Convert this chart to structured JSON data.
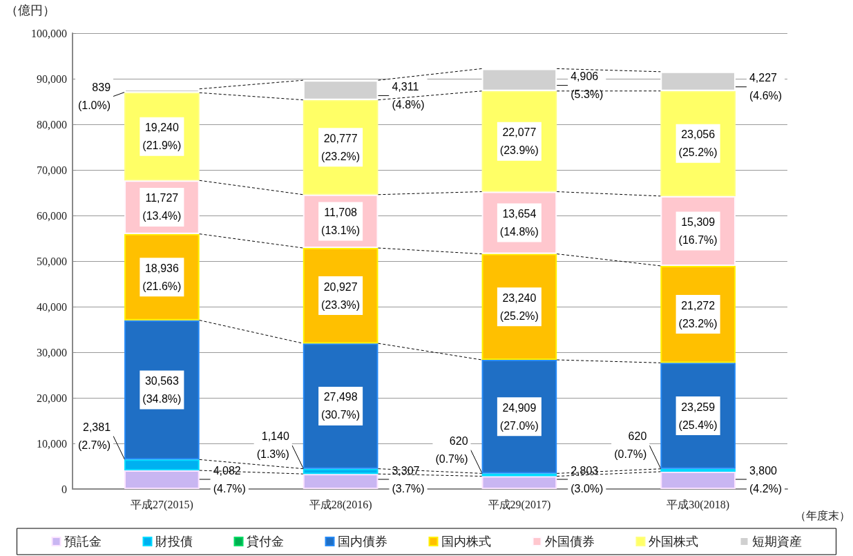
{
  "chart_data": {
    "type": "bar",
    "stacked": true,
    "ylabel": "（億円）",
    "xlabel": "（年度末）",
    "categories": [
      "平成27(2015)",
      "平成28(2016)",
      "平成29(2017)",
      "平成30(2018)"
    ],
    "ylim": [
      0,
      100000
    ],
    "yticks": [
      0,
      {
        "value": 10000,
        "label": "10,000"
      },
      {
        "value": 20000,
        "label": "20,000"
      },
      {
        "value": 30000,
        "label": "30,000"
      },
      {
        "value": 40000,
        "label": "40,000"
      },
      {
        "value": 50000,
        "label": "50,000"
      },
      {
        "value": 60000,
        "label": "60,000"
      },
      {
        "value": 70000,
        "label": "70,000"
      },
      {
        "value": 80000,
        "label": "80,000"
      },
      {
        "value": 90000,
        "label": "90,000"
      },
      {
        "value": 100000,
        "label": "100,000"
      }
    ],
    "grid": "y",
    "legend": "bottom",
    "series": [
      {
        "name": "預託金",
        "color": "#c9b6f2",
        "values": [
          4082,
          3307,
          2803,
          3800
        ],
        "value_labels": [
          "4,082\n(4.7%)",
          "3,307\n(3.7%)",
          "2,803\n(3.0%)",
          "3,800\n(4.2%)"
        ]
      },
      {
        "name": "財投債",
        "color": "#00b0f0",
        "values": [
          2381,
          1140,
          620,
          620
        ],
        "value_labels": [
          "2,381\n(2.7%)",
          "1,140\n(1.3%)",
          "620\n(0.7%)",
          "620\n(0.7%)"
        ]
      },
      {
        "name": "貸付金",
        "color": "#00b050",
        "values": [
          null,
          null,
          null,
          null
        ]
      },
      {
        "name": "国内債券",
        "color": "#1f6fc5",
        "values": [
          30563,
          27498,
          24909,
          23259
        ],
        "value_labels": [
          "30,563\n(34.8%)",
          "27,498\n(30.7%)",
          "24,909\n(27.0%)",
          "23,259\n(25.4%)"
        ]
      },
      {
        "name": "国内株式",
        "color": "#ffc000",
        "values": [
          18936,
          20927,
          23240,
          21272
        ],
        "value_labels": [
          "18,936\n(21.6%)",
          "20,927\n(23.3%)",
          "23,240\n(25.2%)",
          "21,272\n(23.2%)"
        ]
      },
      {
        "name": "外国債券",
        "color": "#ffc7ce",
        "values": [
          11727,
          11708,
          13654,
          15309
        ],
        "value_labels": [
          "11,727\n(13.4%)",
          "11,708\n(13.1%)",
          "13,654\n(14.8%)",
          "15,309\n(16.7%)"
        ]
      },
      {
        "name": "外国株式",
        "color": "#ffff66",
        "values": [
          19240,
          20777,
          22077,
          23056
        ],
        "value_labels": [
          "19,240\n(21.9%)",
          "20,777\n(23.2%)",
          "22,077\n(23.9%)",
          "23,056\n(25.2%)"
        ]
      },
      {
        "name": "短期資産",
        "color": "#d0d0d0",
        "values": [
          839,
          4311,
          4906,
          4227
        ],
        "value_labels": [
          "839\n(1.0%)",
          "4,311\n(4.8%)",
          "4,906\n(5.3%)",
          "4,227\n(4.6%)"
        ]
      }
    ]
  }
}
